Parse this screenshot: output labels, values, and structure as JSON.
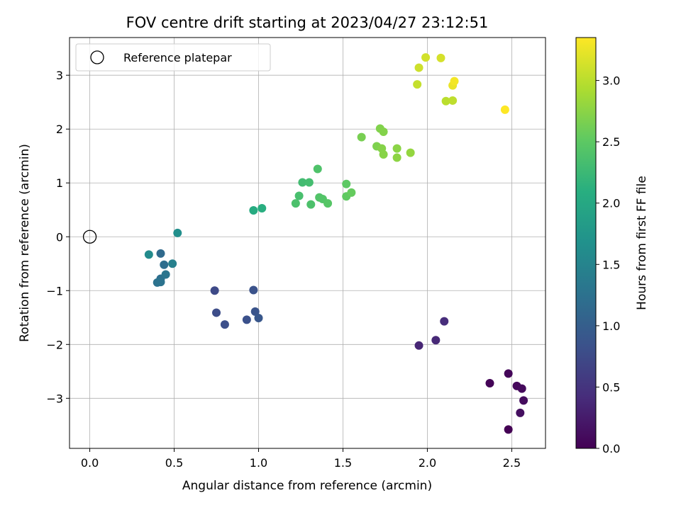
{
  "chart_data": {
    "type": "scatter",
    "title": "FOV centre drift starting at 2023/04/27 23:12:51",
    "xlabel": "Angular distance from reference (arcmin)",
    "ylabel": "Rotation from reference (arcmin)",
    "xlim": [
      -0.12,
      2.7
    ],
    "ylim": [
      -3.93,
      3.7
    ],
    "xticks": [
      0.0,
      0.5,
      1.0,
      1.5,
      2.0,
      2.5
    ],
    "xtick_labels": [
      "0.0",
      "0.5",
      "1.0",
      "1.5",
      "2.0",
      "2.5"
    ],
    "yticks": [
      -3,
      -2,
      -1,
      0,
      1,
      2,
      3
    ],
    "ytick_labels": [
      "−3",
      "−2",
      "−1",
      "0",
      "1",
      "2",
      "3"
    ],
    "grid": true,
    "legend": {
      "placement": "top-left",
      "entries": [
        "Reference platepar"
      ]
    },
    "reference_point": {
      "x": 0.0,
      "y": 0.0
    },
    "colorbar": {
      "label": "Hours from first FF file",
      "range": [
        0.0,
        3.35
      ],
      "ticks": [
        0.0,
        0.5,
        1.0,
        1.5,
        2.0,
        2.5,
        3.0
      ],
      "tick_labels": [
        "0.0",
        "0.5",
        "1.0",
        "1.5",
        "2.0",
        "2.5",
        "3.0"
      ],
      "colormap": "viridis"
    },
    "points": [
      {
        "x": 2.48,
        "y": -3.58,
        "c": 0.0
      },
      {
        "x": 2.37,
        "y": -2.72,
        "c": 0.03
      },
      {
        "x": 2.48,
        "y": -2.54,
        "c": 0.05
      },
      {
        "x": 2.53,
        "y": -2.77,
        "c": 0.07
      },
      {
        "x": 2.56,
        "y": -2.82,
        "c": 0.09
      },
      {
        "x": 2.57,
        "y": -3.04,
        "c": 0.11
      },
      {
        "x": 2.55,
        "y": -3.27,
        "c": 0.13
      },
      {
        "x": 1.95,
        "y": -2.02,
        "c": 0.35
      },
      {
        "x": 2.05,
        "y": -1.92,
        "c": 0.38
      },
      {
        "x": 2.1,
        "y": -1.57,
        "c": 0.42
      },
      {
        "x": 0.74,
        "y": -1.0,
        "c": 0.75
      },
      {
        "x": 0.75,
        "y": -1.41,
        "c": 0.78
      },
      {
        "x": 0.8,
        "y": -1.63,
        "c": 0.8
      },
      {
        "x": 0.93,
        "y": -1.54,
        "c": 0.83
      },
      {
        "x": 0.97,
        "y": -0.99,
        "c": 0.85
      },
      {
        "x": 0.98,
        "y": -1.39,
        "c": 0.87
      },
      {
        "x": 1.0,
        "y": -1.51,
        "c": 0.9
      },
      {
        "x": 0.42,
        "y": -0.31,
        "c": 1.15
      },
      {
        "x": 0.44,
        "y": -0.52,
        "c": 1.2
      },
      {
        "x": 0.42,
        "y": -0.78,
        "c": 1.22
      },
      {
        "x": 0.4,
        "y": -0.85,
        "c": 1.25
      },
      {
        "x": 0.42,
        "y": -0.84,
        "c": 1.27
      },
      {
        "x": 0.45,
        "y": -0.7,
        "c": 1.3
      },
      {
        "x": 0.49,
        "y": -0.5,
        "c": 1.45
      },
      {
        "x": 0.35,
        "y": -0.33,
        "c": 1.6
      },
      {
        "x": 0.52,
        "y": 0.07,
        "c": 1.65
      },
      {
        "x": 0.97,
        "y": 0.49,
        "c": 2.05
      },
      {
        "x": 1.02,
        "y": 0.53,
        "c": 2.1
      },
      {
        "x": 1.26,
        "y": 1.01,
        "c": 2.3
      },
      {
        "x": 1.3,
        "y": 1.01,
        "c": 2.32
      },
      {
        "x": 1.24,
        "y": 0.76,
        "c": 2.35
      },
      {
        "x": 1.22,
        "y": 0.62,
        "c": 2.37
      },
      {
        "x": 1.31,
        "y": 0.6,
        "c": 2.38
      },
      {
        "x": 1.35,
        "y": 1.26,
        "c": 2.4
      },
      {
        "x": 1.36,
        "y": 0.73,
        "c": 2.42
      },
      {
        "x": 1.38,
        "y": 0.7,
        "c": 2.43
      },
      {
        "x": 1.41,
        "y": 0.62,
        "c": 2.45
      },
      {
        "x": 1.52,
        "y": 0.98,
        "c": 2.5
      },
      {
        "x": 1.52,
        "y": 0.75,
        "c": 2.52
      },
      {
        "x": 1.55,
        "y": 0.82,
        "c": 2.55
      },
      {
        "x": 1.61,
        "y": 1.85,
        "c": 2.65
      },
      {
        "x": 1.7,
        "y": 1.68,
        "c": 2.68
      },
      {
        "x": 1.72,
        "y": 2.01,
        "c": 2.7
      },
      {
        "x": 1.74,
        "y": 1.95,
        "c": 2.71
      },
      {
        "x": 1.73,
        "y": 1.64,
        "c": 2.72
      },
      {
        "x": 1.74,
        "y": 1.53,
        "c": 2.73
      },
      {
        "x": 1.82,
        "y": 1.64,
        "c": 2.75
      },
      {
        "x": 1.82,
        "y": 1.47,
        "c": 2.76
      },
      {
        "x": 1.9,
        "y": 1.56,
        "c": 2.8
      },
      {
        "x": 1.94,
        "y": 2.83,
        "c": 3.05
      },
      {
        "x": 1.95,
        "y": 3.14,
        "c": 3.1
      },
      {
        "x": 1.99,
        "y": 3.33,
        "c": 3.12
      },
      {
        "x": 2.08,
        "y": 3.32,
        "c": 3.14
      },
      {
        "x": 2.11,
        "y": 2.52,
        "c": 3.0
      },
      {
        "x": 2.15,
        "y": 2.53,
        "c": 3.02
      },
      {
        "x": 2.15,
        "y": 2.81,
        "c": 3.25
      },
      {
        "x": 2.16,
        "y": 2.89,
        "c": 3.3
      },
      {
        "x": 2.46,
        "y": 2.36,
        "c": 3.35
      }
    ]
  }
}
